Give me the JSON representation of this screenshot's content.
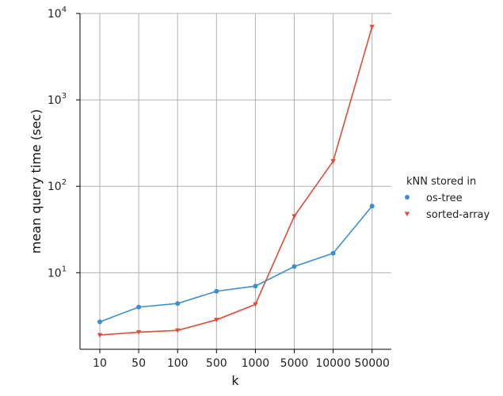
{
  "chart_data": {
    "type": "line",
    "title": "",
    "xlabel": "k",
    "ylabel": "mean query time (sec)",
    "categories": [
      "10",
      "50",
      "100",
      "500",
      "1000",
      "5000",
      "10000",
      "50000"
    ],
    "yscale": "log",
    "ylim": [
      1.3,
      10000
    ],
    "y_ticks": [
      {
        "value": 10,
        "base": "10",
        "exp": "1"
      },
      {
        "value": 100,
        "base": "10",
        "exp": "2"
      },
      {
        "value": 1000,
        "base": "10",
        "exp": "3"
      },
      {
        "value": 10000,
        "base": "10",
        "exp": "4"
      }
    ],
    "grid": true,
    "legend": {
      "title": "kNN stored in",
      "placement": "right"
    },
    "series": [
      {
        "name": "os-tree",
        "color": "#3b8fd1",
        "marker": "circle",
        "values": [
          2.7,
          4.0,
          4.4,
          6.1,
          7.0,
          11.8,
          16.8,
          59
        ]
      },
      {
        "name": "sorted-array",
        "color": "#e04a3a",
        "marker": "triangle-down",
        "values": [
          1.9,
          2.05,
          2.15,
          2.85,
          4.3,
          45,
          195,
          7000
        ]
      }
    ]
  }
}
